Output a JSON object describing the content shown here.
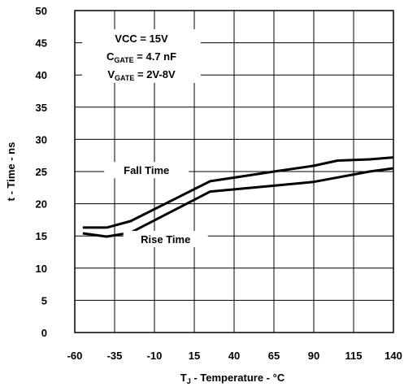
{
  "chart_data": {
    "type": "line",
    "xlabel": "T_J - Temperature - °C",
    "ylabel": "t - Time - ns",
    "xlim": [
      -60,
      140
    ],
    "ylim": [
      0,
      50
    ],
    "grid": true,
    "x_ticks": [
      "-60",
      "-35",
      "-10",
      "15",
      "40",
      "65",
      "90",
      "115",
      "140"
    ],
    "y_ticks": [
      "0",
      "5",
      "10",
      "15",
      "20",
      "25",
      "30",
      "35",
      "40",
      "45",
      "50"
    ],
    "conditions": [
      {
        "main": "VCC",
        "sub": "",
        "value": " = 15V"
      },
      {
        "main": "C",
        "sub": "GATE",
        "value": " = 4.7 nF"
      },
      {
        "main": "V",
        "sub": "GATE",
        "value": " = 2V-8V"
      }
    ],
    "series": [
      {
        "name": "Fall Time",
        "x": [
          -55,
          -40,
          -25,
          25,
          65,
          90,
          105,
          125,
          140
        ],
        "y": [
          16.3,
          16.3,
          17.3,
          23.5,
          25.0,
          25.9,
          26.7,
          26.9,
          27.2
        ]
      },
      {
        "name": "Rise Time",
        "x": [
          -55,
          -40,
          -25,
          25,
          65,
          90,
          125,
          140
        ],
        "y": [
          15.4,
          14.9,
          15.5,
          21.9,
          22.8,
          23.4,
          25.0,
          25.5
        ]
      }
    ]
  }
}
